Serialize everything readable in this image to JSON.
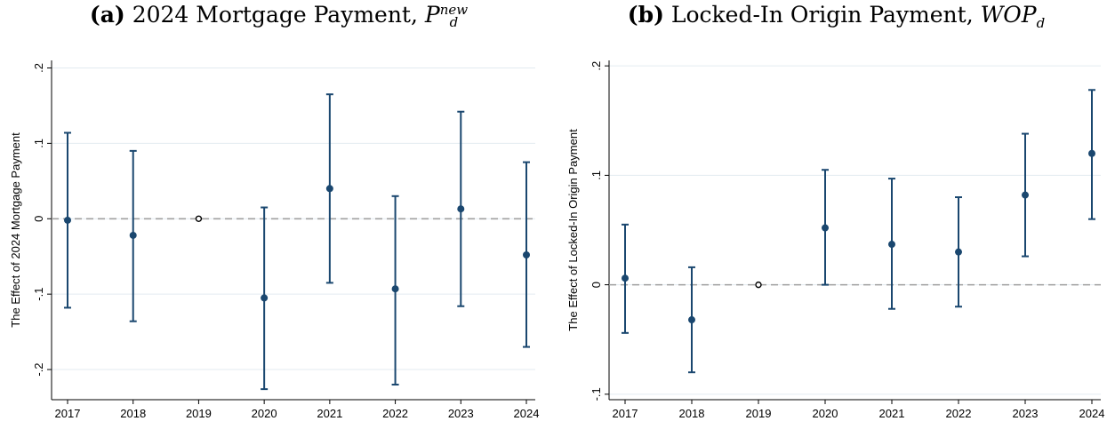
{
  "panels": [
    {
      "label": "(a)",
      "title_text": "2024 Mortgage Payment, ",
      "title_symbol": "P",
      "title_sub": "d",
      "title_sup": "new",
      "ylabel": "The Effect of 2024 Mortgage Payment"
    },
    {
      "label": "(b)",
      "title_text": "Locked-In Origin Payment, ",
      "title_symbol": "WOP",
      "title_sub": "d",
      "title_sup": "",
      "ylabel": "The Effect of Locked-In Origin Payment"
    }
  ],
  "chart_data": [
    {
      "type": "scatter",
      "subtype": "coefficient plot with 95% confidence intervals",
      "title": "(a) 2024 Mortgage Payment, P_d^new",
      "xlabel": "",
      "ylabel": "The Effect of 2024 Mortgage Payment",
      "categories": [
        "2017",
        "2018",
        "2019",
        "2020",
        "2021",
        "2022",
        "2023",
        "2024"
      ],
      "estimates": [
        -0.002,
        -0.022,
        0.0,
        -0.105,
        0.04,
        -0.093,
        0.013,
        -0.048
      ],
      "ci_low": [
        -0.118,
        -0.136,
        null,
        -0.226,
        -0.085,
        -0.22,
        -0.116,
        -0.17
      ],
      "ci_high": [
        0.114,
        0.09,
        null,
        0.015,
        0.165,
        0.03,
        0.142,
        0.075
      ],
      "reference_index": 2,
      "yticks": [
        -0.2,
        -0.1,
        0,
        0.1,
        0.2
      ],
      "ytick_labels": [
        "-.2",
        "-.1",
        "0",
        ".1",
        ".2"
      ],
      "ylim": [
        -0.24,
        0.21
      ],
      "reference_line": 0,
      "grid": true,
      "colors": {
        "marker": "#1a476f",
        "reference_marker": "#ffffff",
        "zero_line": "#a0a0a0",
        "grid": "#e3ebf0"
      }
    },
    {
      "type": "scatter",
      "subtype": "coefficient plot with 95% confidence intervals",
      "title": "(b) Locked-In Origin Payment, WOP_d",
      "xlabel": "",
      "ylabel": "The Effect of Locked-In Origin Payment",
      "categories": [
        "2017",
        "2018",
        "2019",
        "2020",
        "2021",
        "2022",
        "2023",
        "2024"
      ],
      "estimates": [
        0.006,
        -0.032,
        0.0,
        0.052,
        0.037,
        0.03,
        0.082,
        0.12
      ],
      "ci_low": [
        -0.044,
        -0.08,
        null,
        0.0,
        -0.022,
        -0.02,
        0.026,
        0.06
      ],
      "ci_high": [
        0.055,
        0.016,
        null,
        0.105,
        0.097,
        0.08,
        0.138,
        0.178
      ],
      "reference_index": 2,
      "yticks": [
        -0.1,
        0,
        0.1,
        0.2
      ],
      "ytick_labels": [
        "-.1",
        "0",
        ".1",
        ".2"
      ],
      "ylim": [
        -0.105,
        0.205
      ],
      "reference_line": 0,
      "grid": true,
      "colors": {
        "marker": "#1a476f",
        "reference_marker": "#ffffff",
        "zero_line": "#a0a0a0",
        "grid": "#e3ebf0"
      }
    }
  ]
}
